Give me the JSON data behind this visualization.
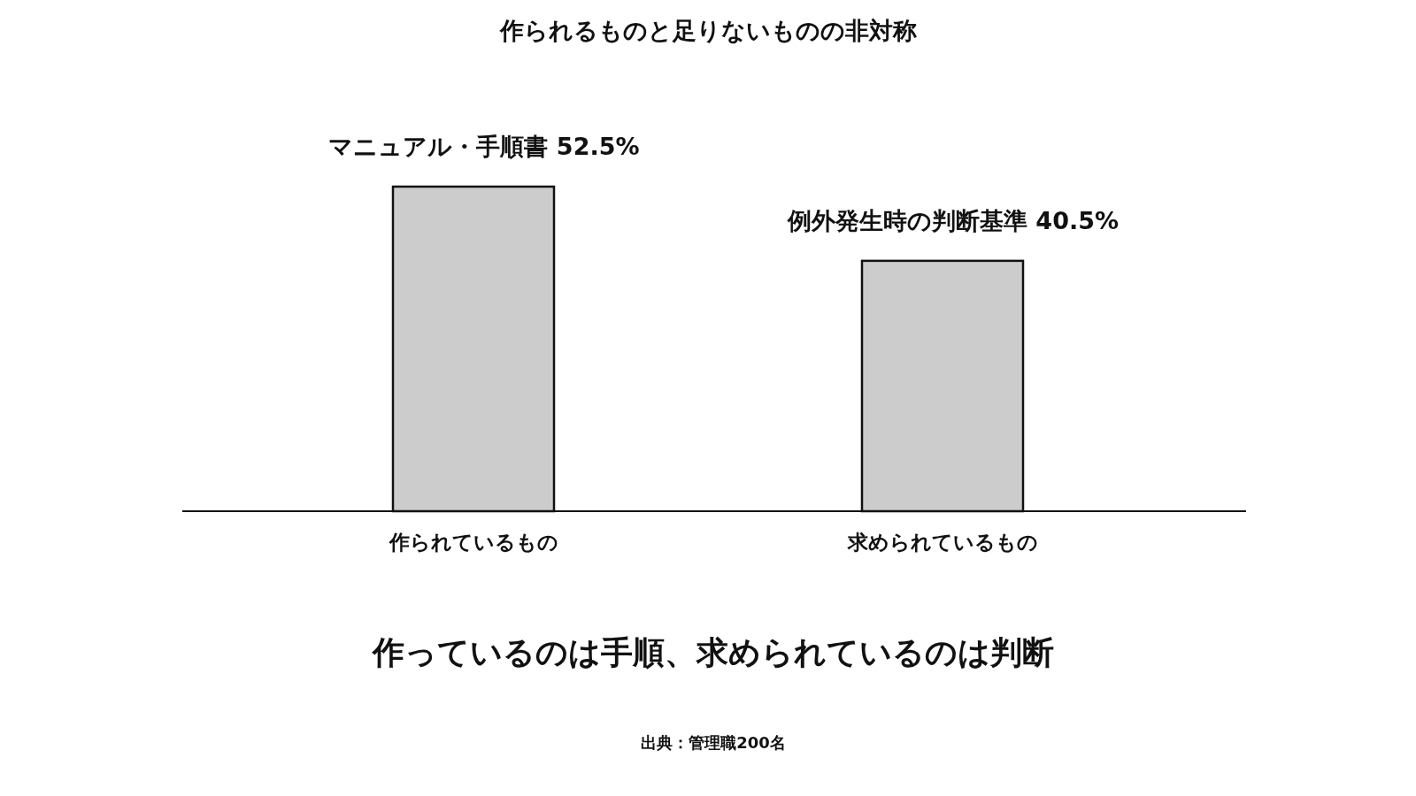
{
  "chart_data": {
    "type": "bar",
    "title": "作られるものと足りないものの非対称",
    "categories": [
      "作られているもの",
      "求められているもの"
    ],
    "values": [
      52.5,
      40.5
    ],
    "value_labels": [
      "マニュアル・手順書 52.5%",
      "例外発生時の判断基準 40.5%"
    ],
    "color": "#cccccc",
    "annotations": [
      "作っているのは手順、求められているのは判断",
      "出典：管理職200名"
    ]
  }
}
